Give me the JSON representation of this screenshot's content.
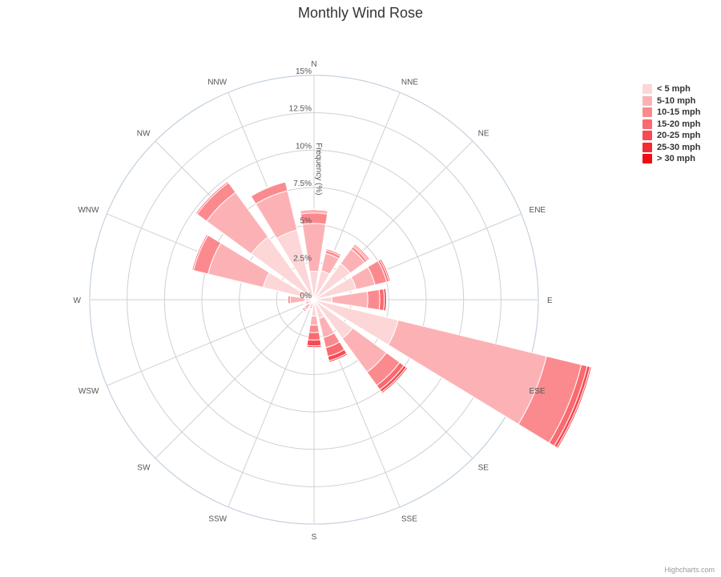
{
  "chart_data": {
    "type": "wind-rose",
    "title": "Monthly Wind Rose",
    "radial_axis_label": "Frequency (%)",
    "radial_ticks": [
      "0%",
      "2.5%",
      "5%",
      "7.5%",
      "10%",
      "12.5%",
      "15%"
    ],
    "radial_range": [
      0,
      15
    ],
    "directions": [
      "N",
      "NNE",
      "NE",
      "ENE",
      "E",
      "ESE",
      "SE",
      "SSE",
      "S",
      "SSW",
      "SW",
      "WSW",
      "W",
      "WNW",
      "NW",
      "NNW"
    ],
    "series": [
      {
        "name": "< 5 mph",
        "color": "#fdd6d8",
        "values": [
          1.9,
          2.0,
          3.0,
          2.9,
          1.2,
          5.8,
          3.2,
          1.3,
          1.1,
          0.3,
          0.4,
          0.3,
          0.6,
          3.5,
          5.2,
          4.8
        ]
      },
      {
        "name": "5-10 mph",
        "color": "#fcb2b5",
        "values": [
          3.2,
          1.2,
          1.2,
          1.3,
          2.4,
          10.2,
          2.8,
          1.3,
          0.6,
          0.2,
          0.4,
          0.3,
          1.0,
          3.8,
          3.7,
          2.7
        ]
      },
      {
        "name": "10-15 mph",
        "color": "#fb8a8f",
        "values": [
          0.7,
          0.2,
          0.2,
          0.8,
          0.8,
          2.4,
          1.1,
          0.7,
          0.5,
          0.1,
          0.1,
          0.05,
          0.15,
          1.0,
          0.8,
          0.6
        ]
      },
      {
        "name": "15-20 mph",
        "color": "#fa6a70",
        "values": [
          0.1,
          0.1,
          0.1,
          0.15,
          0.3,
          0.4,
          0.35,
          0.6,
          0.5,
          0.05,
          0.1,
          0.05,
          0.0,
          0.1,
          0.1,
          0.05
        ]
      },
      {
        "name": "20-25 mph",
        "color": "#f74a52",
        "values": [
          0.1,
          0.05,
          0.1,
          0.1,
          0.15,
          0.2,
          0.2,
          0.3,
          0.4,
          0.05,
          0.05,
          0.05,
          0.0,
          0.05,
          0.0,
          0.0
        ]
      },
      {
        "name": "25-30 mph",
        "color": "#f52a33",
        "values": [
          0.05,
          0.0,
          0.05,
          0.05,
          0.05,
          0.1,
          0.1,
          0.1,
          0.1,
          0.0,
          0.0,
          0.0,
          0.0,
          0.0,
          0.0,
          0.0
        ]
      },
      {
        "name": "> 30 mph",
        "color": "#f20a14",
        "values": [
          0.0,
          0.0,
          0.0,
          0.0,
          0.0,
          0.05,
          0.05,
          0.05,
          0.0,
          0.0,
          0.0,
          0.0,
          0.0,
          0.0,
          0.0,
          0.0
        ]
      }
    ],
    "legend_position": "top-right",
    "grid": true,
    "credits": "Highcharts.com"
  }
}
